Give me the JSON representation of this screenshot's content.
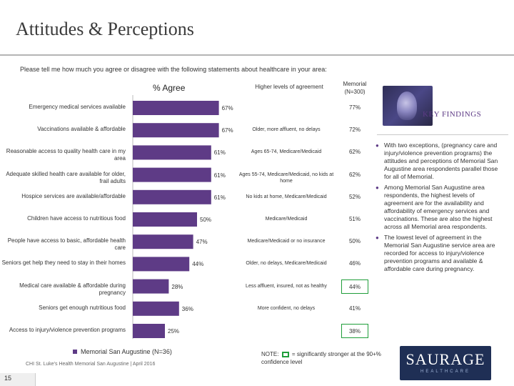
{
  "header": {
    "title": "Attitudes & Perceptions",
    "question": "Please tell me how much you agree or disagree with the following statements about healthcare in your area:"
  },
  "columns": {
    "agree": "% Agree",
    "higher": "Higher levels of agreement",
    "memorial": "Memorial (N=300)"
  },
  "colors": {
    "bar": "#5e3b86",
    "highlight_box": "#1f9e3a"
  },
  "chart_data": {
    "type": "bar",
    "orientation": "horizontal",
    "categories": [
      "Emergency medical services available",
      "Vaccinations available & affordable",
      "Reasonable access to quality health care in my area",
      "Adequate skilled health care available for older, frail adults",
      "Hospice services are available/affordable",
      "Children have access to nutritious food",
      "People have access to basic, affordable health care",
      "Seniors get help they need to stay in their homes",
      "Medical care available & affordable during pregnancy",
      "Seniors get enough nutritious food",
      "Access to injury/violence prevention programs"
    ],
    "series": [
      {
        "name": "Memorial San Augustine (N=36)",
        "values": [
          67,
          67,
          61,
          61,
          61,
          50,
          47,
          44,
          28,
          36,
          25
        ],
        "labels": [
          "67%",
          "67%",
          "61%",
          "61%",
          "61%",
          "50%",
          "47%",
          "44%",
          "28%",
          "36%",
          "25%"
        ]
      }
    ],
    "higher_levels": [
      "",
      "Older, more affluent, no delays",
      "Ages 65-74, Medicare/Medicaid",
      "Ages 55-74, Medicare/Medicaid, no kids at home",
      "No kids at home, Medicare/Medicaid",
      "Medicare/Medicaid",
      "Medicare/Medicaid or no insurance",
      "Older, no delays, Medicare/Medicaid",
      "Less affluent, insured, not as healthy",
      "More confident, no delays",
      ""
    ],
    "memorial_values": [
      "77%",
      "72%",
      "62%",
      "62%",
      "52%",
      "51%",
      "50%",
      "46%",
      "44%",
      "41%",
      "38%"
    ],
    "memorial_boxed": [
      false,
      false,
      false,
      false,
      false,
      false,
      false,
      false,
      true,
      false,
      true
    ],
    "xlim": [
      0,
      100
    ]
  },
  "legend": {
    "label": "Memorial San Augustine (N=36)"
  },
  "footer": {
    "source": "CHI St. Luke's Health Memorial San Augustine | April 2016",
    "page_number": "15"
  },
  "note": {
    "prefix": "NOTE:",
    "text": "= significantly stronger at the 90+% confidence level"
  },
  "key_findings": {
    "title": "KEY FINDINGS",
    "items": [
      "With two exceptions, (pregnancy care and injury/violence prevention programs) the attitudes and perceptions of Memorial San Augustine area respondents parallel those for all of Memorial.",
      "Among Memorial San Augustine area respondents, the highest levels of agreement are for the availability and affordability of emergency services and vaccinations. These are also the highest across all Memorial area respondents.",
      "The lowest level of agreement in the Memorial San Augustine service area are recorded for access to injury/violence prevention programs and available & affordable care during pregnancy."
    ]
  },
  "logo": {
    "word": "SAURAGE",
    "sub": "HEALTHCARE"
  }
}
